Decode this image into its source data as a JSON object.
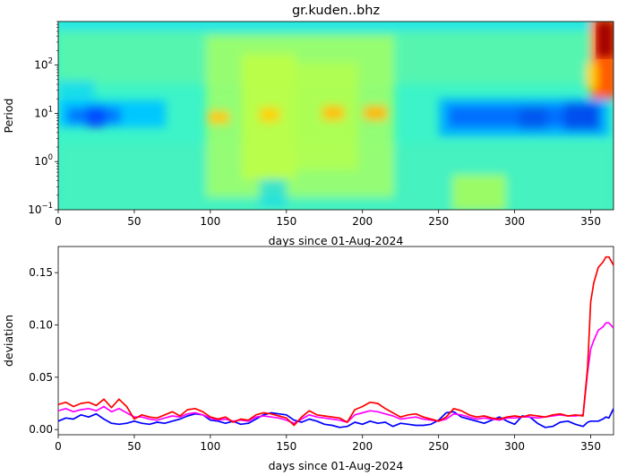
{
  "chart_data": [
    {
      "type": "heatmap",
      "title": "gr.kuden..bhz",
      "xlabel": "days since 01-Aug-2024",
      "ylabel": "Period",
      "xlim": [
        0,
        365
      ],
      "ylim": [
        0.1,
        800
      ],
      "yscale": "log",
      "x_ticks": [
        "0",
        "50",
        "100",
        "150",
        "200",
        "250",
        "300",
        "350"
      ],
      "y_ticks": [
        {
          "base": "10",
          "exp": "−1"
        },
        {
          "base": "10",
          "exp": "0"
        },
        {
          "base": "10",
          "exp": "1"
        },
        {
          "base": "10",
          "exp": "2"
        }
      ],
      "colormap": "jet",
      "features": {
        "blue_band_period": 7,
        "blue_band_days": [
          [
            0,
            50
          ],
          [
            250,
            360
          ]
        ],
        "yellow_patches_days": [
          100,
          140,
          180,
          205
        ],
        "red_block_days": [
          350,
          365
        ],
        "red_block_period_min": 60
      }
    },
    {
      "type": "line",
      "xlabel": "days since 01-Aug-2024",
      "ylabel": "deviation",
      "xlim": [
        0,
        365
      ],
      "ylim": [
        -0.005,
        0.175
      ],
      "x_ticks": [
        "0",
        "50",
        "100",
        "150",
        "200",
        "250",
        "300",
        "350"
      ],
      "y_ticks": [
        "0.00",
        "0.05",
        "0.10",
        "0.15"
      ],
      "x": [
        0,
        5,
        10,
        15,
        20,
        25,
        30,
        35,
        40,
        45,
        50,
        55,
        60,
        65,
        70,
        75,
        80,
        85,
        90,
        95,
        100,
        105,
        110,
        115,
        120,
        125,
        130,
        135,
        140,
        145,
        150,
        155,
        160,
        165,
        170,
        175,
        180,
        185,
        190,
        195,
        200,
        205,
        210,
        215,
        220,
        225,
        230,
        235,
        240,
        245,
        250,
        255,
        260,
        265,
        270,
        275,
        280,
        285,
        290,
        295,
        300,
        305,
        310,
        315,
        320,
        325,
        330,
        335,
        340,
        345,
        348,
        350,
        352,
        355,
        358,
        360,
        362,
        365
      ],
      "series": [
        {
          "color": "#ff0000",
          "values": [
            0.024,
            0.026,
            0.022,
            0.025,
            0.026,
            0.023,
            0.029,
            0.021,
            0.029,
            0.022,
            0.01,
            0.014,
            0.012,
            0.011,
            0.014,
            0.017,
            0.013,
            0.019,
            0.02,
            0.017,
            0.012,
            0.01,
            0.012,
            0.007,
            0.01,
            0.009,
            0.014,
            0.016,
            0.015,
            0.013,
            0.011,
            0.004,
            0.012,
            0.018,
            0.014,
            0.013,
            0.012,
            0.011,
            0.007,
            0.019,
            0.022,
            0.026,
            0.025,
            0.02,
            0.016,
            0.012,
            0.014,
            0.015,
            0.012,
            0.01,
            0.008,
            0.012,
            0.02,
            0.018,
            0.014,
            0.012,
            0.013,
            0.011,
            0.01,
            0.012,
            0.013,
            0.012,
            0.014,
            0.013,
            0.012,
            0.014,
            0.015,
            0.013,
            0.014,
            0.013,
            0.06,
            0.122,
            0.14,
            0.155,
            0.16,
            0.165,
            0.165,
            0.157
          ]
        },
        {
          "color": "#ff00ff",
          "values": [
            0.018,
            0.02,
            0.017,
            0.019,
            0.02,
            0.018,
            0.022,
            0.017,
            0.02,
            0.016,
            0.012,
            0.012,
            0.01,
            0.009,
            0.011,
            0.013,
            0.012,
            0.015,
            0.016,
            0.014,
            0.011,
            0.009,
            0.01,
            0.008,
            0.009,
            0.008,
            0.012,
            0.013,
            0.012,
            0.011,
            0.009,
            0.006,
            0.01,
            0.014,
            0.012,
            0.011,
            0.01,
            0.009,
            0.007,
            0.014,
            0.016,
            0.018,
            0.017,
            0.015,
            0.013,
            0.01,
            0.011,
            0.012,
            0.01,
            0.009,
            0.008,
            0.01,
            0.015,
            0.014,
            0.012,
            0.01,
            0.011,
            0.01,
            0.009,
            0.011,
            0.011,
            0.012,
            0.012,
            0.011,
            0.012,
            0.013,
            0.014,
            0.013,
            0.013,
            0.014,
            0.055,
            0.077,
            0.085,
            0.095,
            0.098,
            0.102,
            0.102,
            0.097
          ]
        },
        {
          "color": "#0000ff",
          "values": [
            0.008,
            0.011,
            0.01,
            0.014,
            0.012,
            0.015,
            0.01,
            0.006,
            0.005,
            0.006,
            0.008,
            0.006,
            0.005,
            0.007,
            0.006,
            0.008,
            0.01,
            0.013,
            0.015,
            0.014,
            0.009,
            0.008,
            0.006,
            0.008,
            0.005,
            0.006,
            0.01,
            0.014,
            0.016,
            0.015,
            0.014,
            0.009,
            0.007,
            0.01,
            0.008,
            0.005,
            0.004,
            0.002,
            0.003,
            0.007,
            0.005,
            0.008,
            0.006,
            0.007,
            0.003,
            0.006,
            0.005,
            0.004,
            0.004,
            0.005,
            0.009,
            0.016,
            0.017,
            0.012,
            0.01,
            0.008,
            0.006,
            0.009,
            0.012,
            0.008,
            0.005,
            0.013,
            0.012,
            0.006,
            0.002,
            0.003,
            0.007,
            0.008,
            0.005,
            0.003,
            0.007,
            0.008,
            0.008,
            0.008,
            0.01,
            0.012,
            0.011,
            0.02
          ]
        }
      ]
    }
  ]
}
